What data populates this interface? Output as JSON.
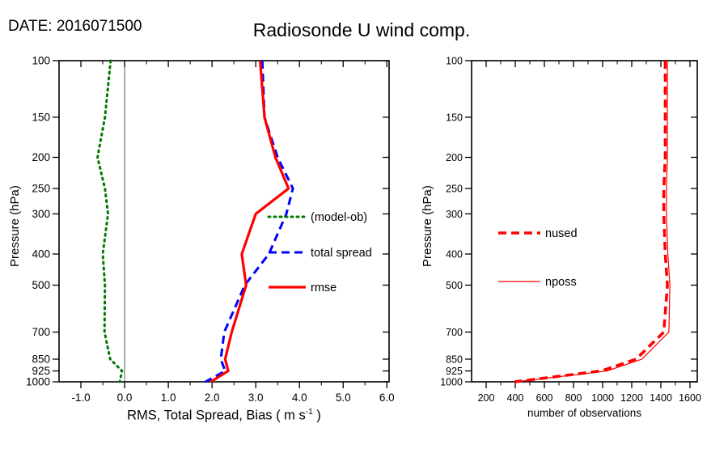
{
  "header": {
    "date_label": "DATE: 2016071500",
    "title": "Radiosonde U wind comp."
  },
  "chart_data": [
    {
      "type": "line",
      "title": "",
      "ylabel": "Pressure (hPa)",
      "xlabel_prefix": "RMS, Total Spread, Bias ( m s",
      "xlabel_sup": "-1",
      "xlabel_suffix": " )",
      "yscale": "log",
      "y_inverted": true,
      "ylim": [
        100,
        1000
      ],
      "y_ticks": [
        100,
        150,
        200,
        250,
        300,
        400,
        500,
        700,
        850,
        925,
        1000
      ],
      "y_tick_labels": [
        "100",
        "150",
        "200",
        "250",
        "300",
        "400",
        "500",
        "700",
        "850",
        "925",
        "1000"
      ],
      "xlim": [
        -1.5,
        6.05
      ],
      "x_ticks": [
        -1,
        0,
        1,
        2,
        3,
        4,
        5,
        6
      ],
      "x_tick_labels": [
        "-1.0",
        "0.0",
        "1.0",
        "2.0",
        "3.0",
        "4.0",
        "5.0",
        "6.0"
      ],
      "x_minor_step": 0.5,
      "zero_line_x": 0.0,
      "grid": false,
      "legend_position": "center-right-inside",
      "pressures": [
        100,
        150,
        200,
        250,
        300,
        400,
        500,
        700,
        850,
        925,
        1000
      ],
      "series": [
        {
          "name": "(model-ob)",
          "color": "#007800",
          "style": "dotted",
          "width": 3,
          "values": [
            -0.32,
            -0.45,
            -0.62,
            -0.45,
            -0.38,
            -0.5,
            -0.45,
            -0.46,
            -0.33,
            -0.06,
            -0.11
          ]
        },
        {
          "name": "total spread",
          "color": "#0000ff",
          "style": "dashed",
          "width": 3,
          "values": [
            3.15,
            3.2,
            3.5,
            3.85,
            3.7,
            3.3,
            2.75,
            2.28,
            2.2,
            2.3,
            1.85
          ]
        },
        {
          "name": "rmse",
          "color": "#ff0000",
          "style": "solid",
          "width": 3.2,
          "values": [
            3.1,
            3.2,
            3.45,
            3.75,
            3.0,
            2.68,
            2.78,
            2.45,
            2.3,
            2.37,
            1.97
          ]
        }
      ]
    },
    {
      "type": "line",
      "title": "",
      "ylabel": "Pressure (hPa)",
      "xlabel": "number of observations",
      "yscale": "log",
      "y_inverted": true,
      "ylim": [
        100,
        1000
      ],
      "y_ticks": [
        100,
        150,
        200,
        250,
        300,
        400,
        500,
        700,
        850,
        925,
        1000
      ],
      "y_tick_labels": [
        "100",
        "150",
        "200",
        "250",
        "300",
        "400",
        "500",
        "700",
        "850",
        "925",
        "1000"
      ],
      "xlim": [
        100,
        1650
      ],
      "x_ticks": [
        200,
        400,
        600,
        800,
        1000,
        1200,
        1400,
        1600
      ],
      "x_tick_labels": [
        "200",
        "400",
        "600",
        "800",
        "1000",
        "1200",
        "1400",
        "1600"
      ],
      "x_minor_step": 100,
      "zero_line_x": null,
      "grid": false,
      "legend_position": "center-left-inside",
      "pressures": [
        100,
        150,
        200,
        250,
        300,
        400,
        500,
        700,
        850,
        925,
        1000
      ],
      "series": [
        {
          "name": "nused",
          "color": "#ff0000",
          "style": "dashed",
          "width": 3.5,
          "values": [
            1430,
            1430,
            1430,
            1420,
            1420,
            1430,
            1445,
            1420,
            1230,
            990,
            395
          ]
        },
        {
          "name": "nposs",
          "color": "#ff0000",
          "style": "solid",
          "width": 1.2,
          "values": [
            1445,
            1445,
            1445,
            1438,
            1438,
            1448,
            1462,
            1455,
            1270,
            1030,
            405
          ]
        }
      ]
    }
  ]
}
